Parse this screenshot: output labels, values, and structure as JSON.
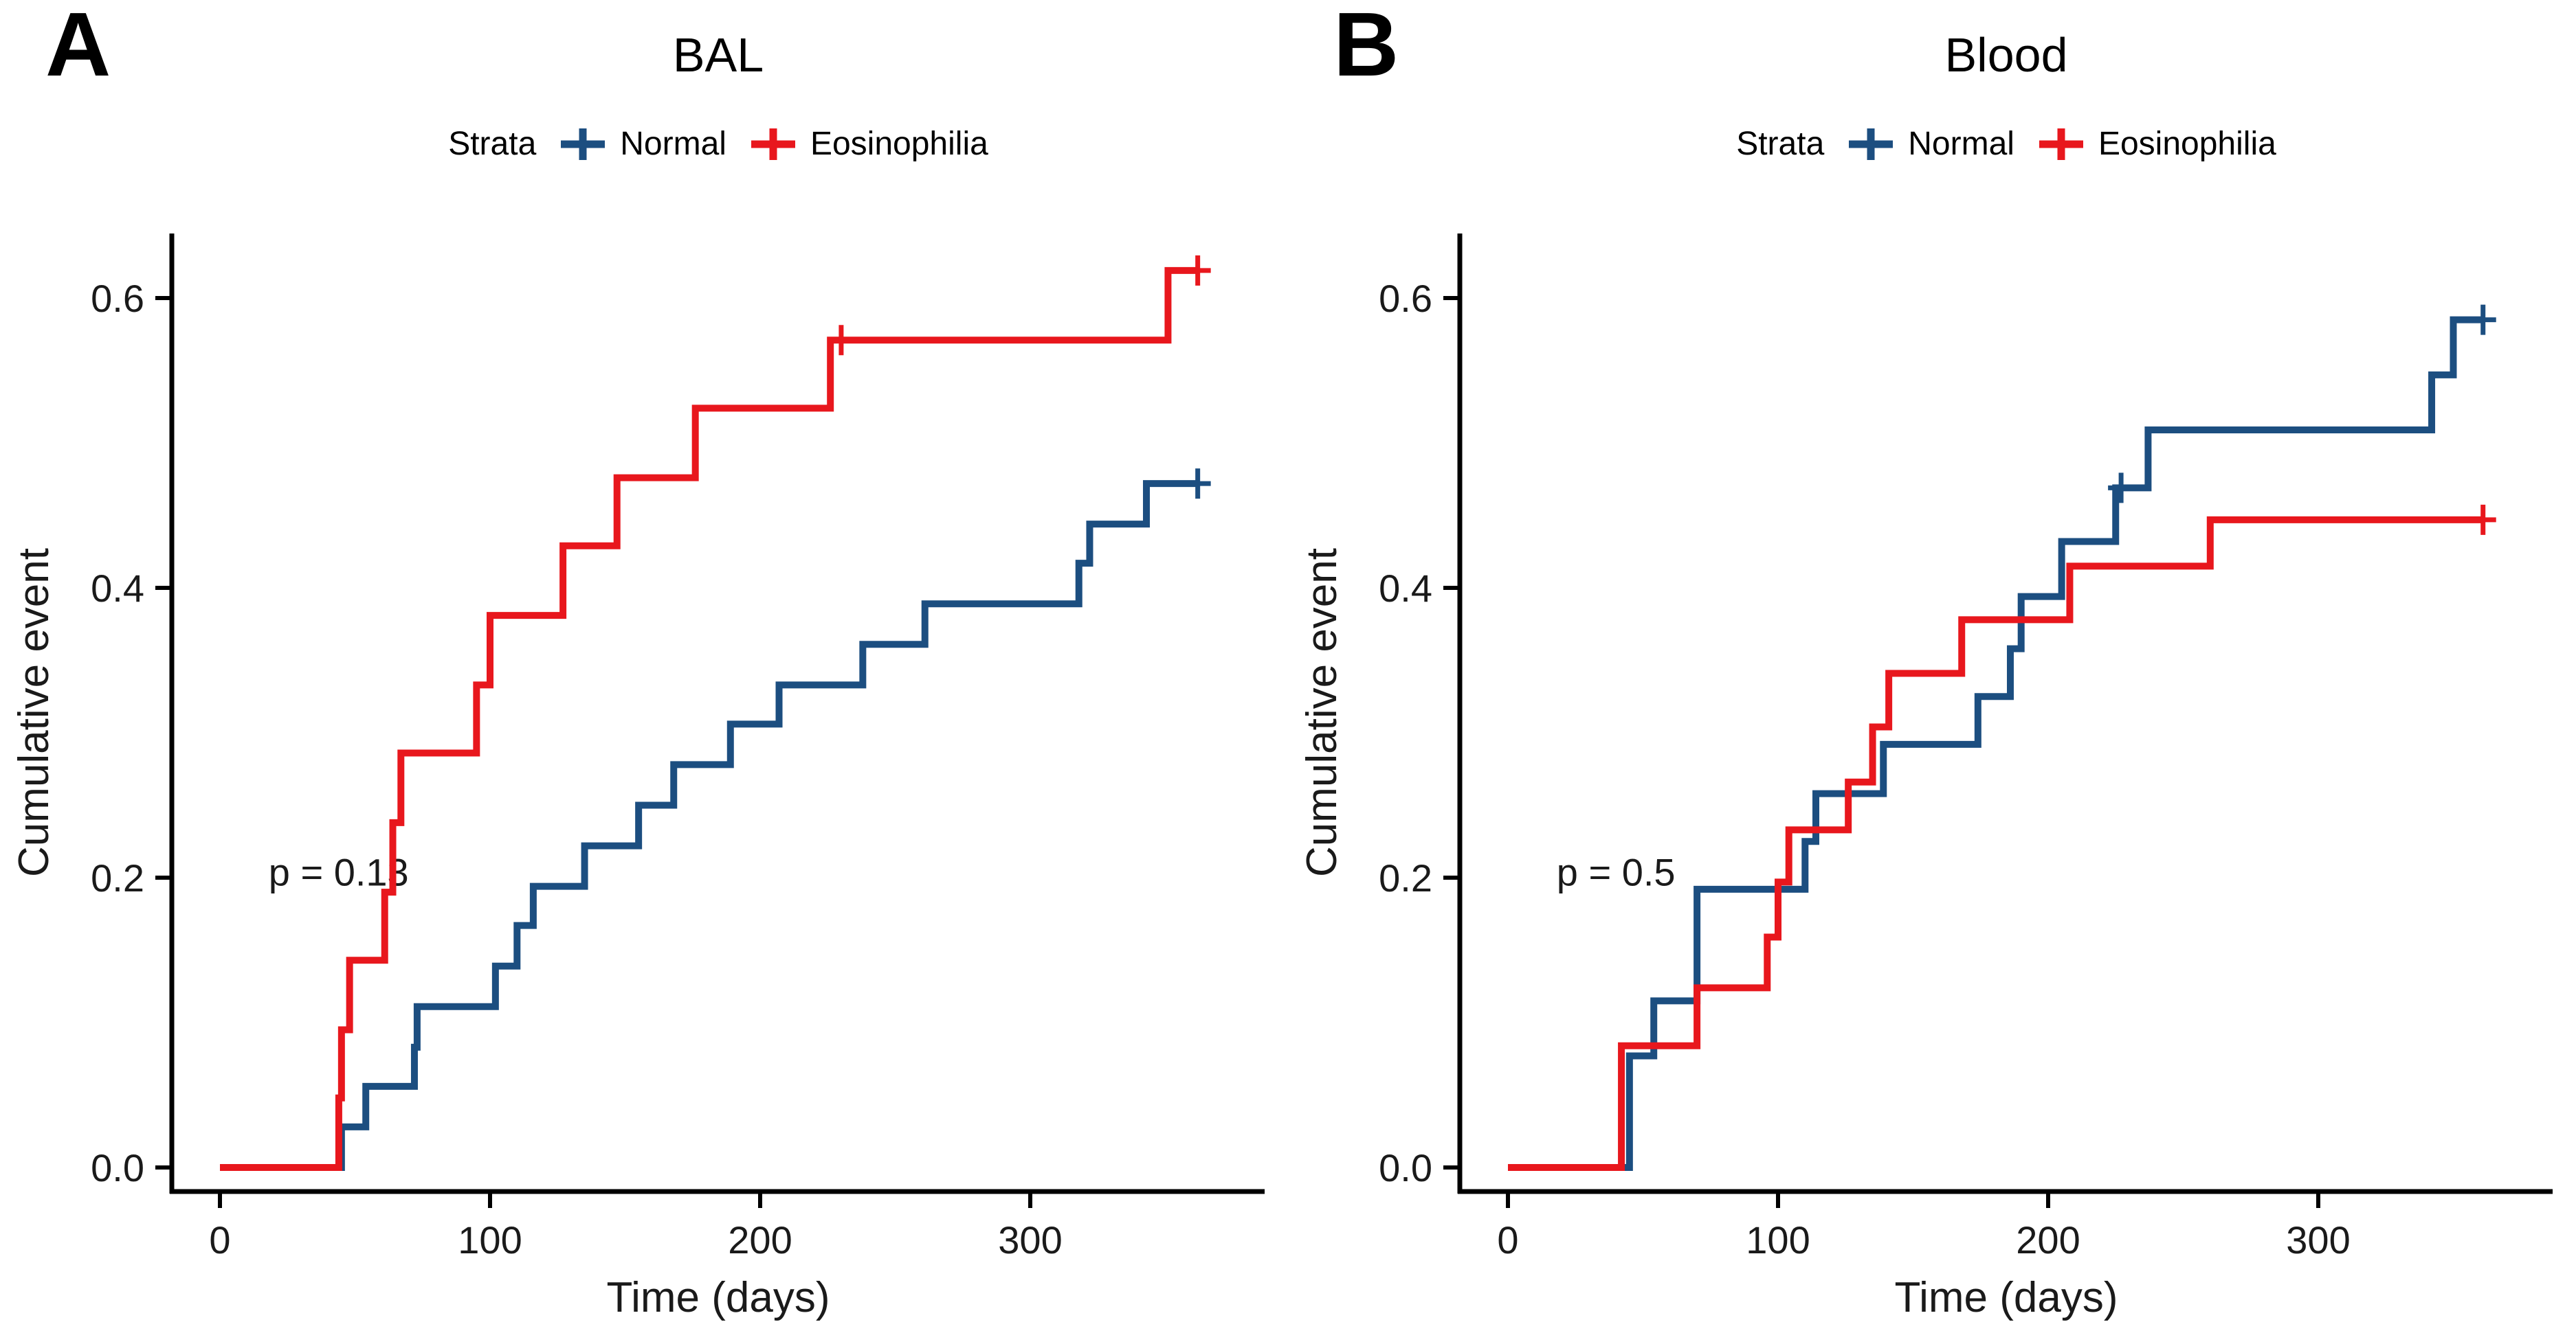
{
  "figure": {
    "background": "#ffffff",
    "axis_color": "#000000",
    "text_color": "#1a1a1a",
    "normal_color": "#1c4e80",
    "eosinophilia_color": "#e8171d"
  },
  "chart_data": [
    {
      "type": "line",
      "subtype": "kaplan-meier-cumulative-event-step",
      "panel_label": "A",
      "title": "BAL",
      "annotation": "p = 0.13",
      "xlabel": "Time (days)",
      "ylabel": "Cumulative event",
      "xlim": [
        0,
        385
      ],
      "ylim": [
        0,
        0.645
      ],
      "grid": false,
      "legend_position": "top",
      "legend": {
        "title": "Strata",
        "entries": [
          {
            "label": "Normal",
            "color": "#1c4e80"
          },
          {
            "label": "Eosinophilia",
            "color": "#e8171d"
          }
        ]
      },
      "xticks": [
        {
          "value": 0,
          "label": "0"
        },
        {
          "value": 100,
          "label": "100"
        },
        {
          "value": 200,
          "label": "200"
        },
        {
          "value": 300,
          "label": "300"
        }
      ],
      "yticks": [
        {
          "value": 0.0,
          "label": "0.0"
        },
        {
          "value": 0.2,
          "label": "0.2"
        },
        {
          "value": 0.4,
          "label": "0.4"
        },
        {
          "value": 0.6,
          "label": "0.6"
        }
      ],
      "series": [
        {
          "name": "Normal",
          "color": "#1c4e80",
          "steps": [
            [
              45,
              0.028
            ],
            [
              54,
              0.056
            ],
            [
              72,
              0.083
            ],
            [
              73,
              0.111
            ],
            [
              102,
              0.139
            ],
            [
              110,
              0.167
            ],
            [
              116,
              0.194
            ],
            [
              135,
              0.222
            ],
            [
              155,
              0.25
            ],
            [
              168,
              0.278
            ],
            [
              189,
              0.306
            ],
            [
              207,
              0.333
            ],
            [
              238,
              0.361
            ],
            [
              261,
              0.389
            ],
            [
              318,
              0.417
            ],
            [
              322,
              0.444
            ],
            [
              343,
              0.472
            ]
          ],
          "end_time": 362,
          "final_value": 0.472,
          "censors": [
            [
              362,
              0.472
            ]
          ]
        },
        {
          "name": "Eosinophilia",
          "color": "#e8171d",
          "steps": [
            [
              44,
              0.048
            ],
            [
              45,
              0.095
            ],
            [
              48,
              0.143
            ],
            [
              61,
              0.19
            ],
            [
              64,
              0.238
            ],
            [
              67,
              0.286
            ],
            [
              95,
              0.333
            ],
            [
              100,
              0.381
            ],
            [
              127,
              0.429
            ],
            [
              147,
              0.476
            ],
            [
              176,
              0.524
            ],
            [
              226,
              0.571
            ],
            [
              351,
              0.619
            ]
          ],
          "end_time": 362,
          "final_value": 0.619,
          "censors": [
            [
              230,
              0.571
            ],
            [
              362,
              0.619
            ]
          ]
        }
      ]
    },
    {
      "type": "line",
      "subtype": "kaplan-meier-cumulative-event-step",
      "panel_label": "B",
      "title": "Blood",
      "annotation": "p = 0.5",
      "xlabel": "Time (days)",
      "ylabel": "Cumulative event",
      "xlim": [
        0,
        385
      ],
      "ylim": [
        0,
        0.645
      ],
      "grid": false,
      "legend_position": "top",
      "legend": {
        "title": "Strata",
        "entries": [
          {
            "label": "Normal",
            "color": "#1c4e80"
          },
          {
            "label": "Eosinophilia",
            "color": "#e8171d"
          }
        ]
      },
      "xticks": [
        {
          "value": 0,
          "label": "0"
        },
        {
          "value": 100,
          "label": "100"
        },
        {
          "value": 200,
          "label": "200"
        },
        {
          "value": 300,
          "label": "300"
        }
      ],
      "yticks": [
        {
          "value": 0.0,
          "label": "0.0"
        },
        {
          "value": 0.2,
          "label": "0.2"
        },
        {
          "value": 0.4,
          "label": "0.4"
        },
        {
          "value": 0.6,
          "label": "0.6"
        }
      ],
      "series": [
        {
          "name": "Normal",
          "color": "#1c4e80",
          "steps": [
            [
              45,
              0.077
            ],
            [
              54,
              0.115
            ],
            [
              70,
              0.192
            ],
            [
              110,
              0.225
            ],
            [
              114,
              0.258
            ],
            [
              139,
              0.292
            ],
            [
              174,
              0.325
            ],
            [
              186,
              0.358
            ],
            [
              190,
              0.394
            ],
            [
              205,
              0.432
            ],
            [
              225,
              0.469
            ],
            [
              237,
              0.509
            ],
            [
              342,
              0.547
            ],
            [
              350,
              0.585
            ]
          ],
          "end_time": 361,
          "final_value": 0.585,
          "censors": [
            [
              227,
              0.469
            ],
            [
              361,
              0.585
            ]
          ]
        },
        {
          "name": "Eosinophilia",
          "color": "#e8171d",
          "steps": [
            [
              42,
              0.084
            ],
            [
              70,
              0.124
            ],
            [
              96,
              0.159
            ],
            [
              100,
              0.197
            ],
            [
              104,
              0.233
            ],
            [
              126,
              0.266
            ],
            [
              135,
              0.304
            ],
            [
              141,
              0.341
            ],
            [
              168,
              0.378
            ],
            [
              208,
              0.415
            ],
            [
              260,
              0.447
            ]
          ],
          "end_time": 361,
          "final_value": 0.447,
          "censors": [
            [
              361,
              0.447
            ]
          ]
        }
      ]
    }
  ]
}
